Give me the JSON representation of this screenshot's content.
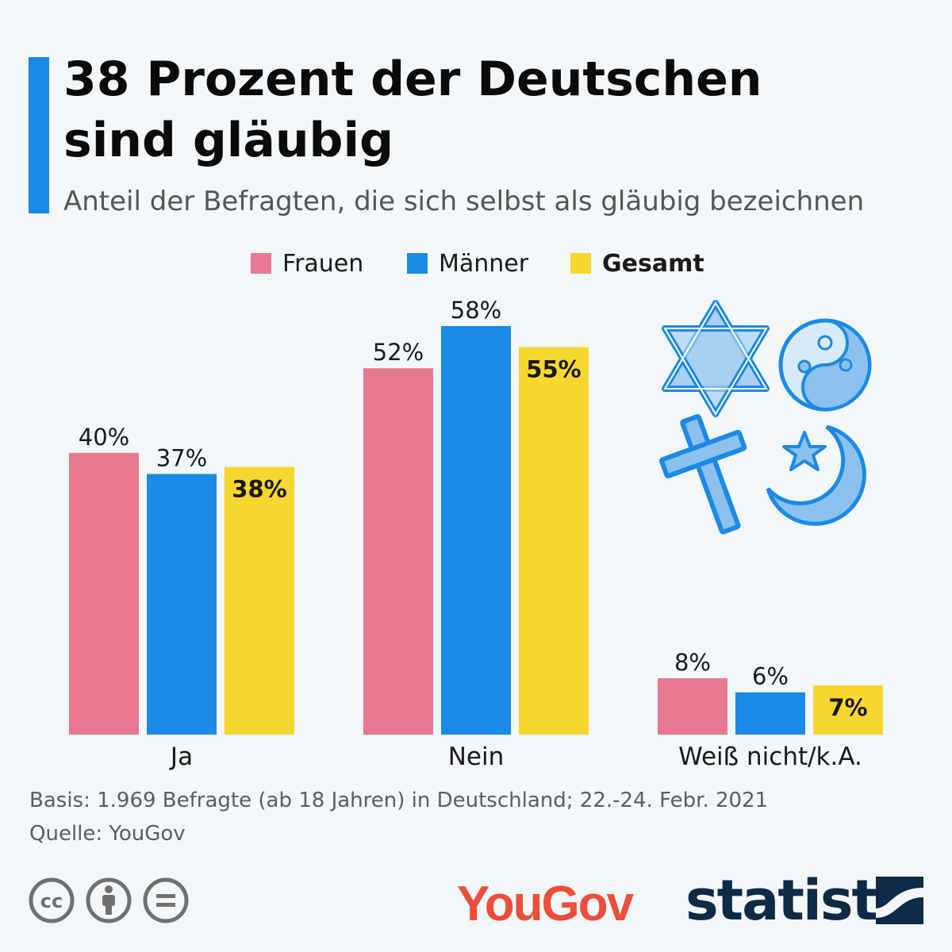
{
  "header": {
    "title_line1": "38 Prozent der Deutschen",
    "title_line2": "sind gläubig",
    "subtitle": "Anteil der Befragten, die sich selbst als gläubig bezeichnen"
  },
  "chart_data": {
    "type": "bar",
    "categories": [
      "Ja",
      "Nein",
      "Weiß nicht/k.A."
    ],
    "series": [
      {
        "name": "Frauen",
        "values": [
          40,
          52,
          8
        ],
        "labels": [
          "40%",
          "52%",
          "8%"
        ],
        "color": "#e87890"
      },
      {
        "name": "Männer",
        "values": [
          37,
          58,
          6
        ],
        "labels": [
          "37%",
          "58%",
          "6%"
        ],
        "color": "#1a8ae6"
      },
      {
        "name": "Gesamt",
        "values": [
          38,
          55,
          7
        ],
        "labels": [
          "38%",
          "55%",
          "7%"
        ],
        "color": "#f6d72d"
      }
    ],
    "ylim": [
      0,
      58
    ],
    "legend_position": "top-center",
    "grid": false
  },
  "footer": {
    "basis": "Basis: 1.969 Befragte (ab 18 Jahren) in Deutschland; 22.-24. Febr. 2021",
    "source": "Quelle: YouGov",
    "yougov_logo": "YouGov",
    "statista_logo": "statista"
  },
  "icons": {
    "religion": [
      "star-of-david-icon",
      "yin-yang-icon",
      "cross-icon",
      "crescent-star-icon"
    ],
    "license": [
      "cc-icon",
      "by-attribution-icon",
      "no-derivatives-icon"
    ]
  },
  "colors": {
    "accent": "#1a8ae6",
    "pink": "#e87890",
    "blue": "#1a8ae6",
    "yellow": "#f6d72d"
  }
}
